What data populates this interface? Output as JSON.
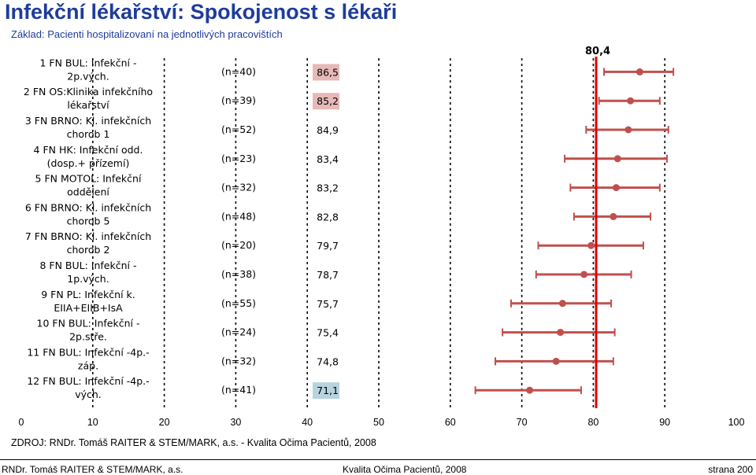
{
  "header": {
    "title": "Infekční lékařství: Spokojenost s lékaři",
    "subtitle": "Základ: Pacienti hospitalizovaní na jednotlivých pracovištích"
  },
  "source": "ZDROJ: RNDr. Tomáš RAITER & STEM/MARK, a.s. - Kvalita Očima Pacientů, 2008",
  "footer": {
    "left": "RNDr. Tomáš RAITER & STEM/MARK, a.s.",
    "center": "Kvalita Očima Pacientů, 2008",
    "right": "strana 200"
  },
  "chart_data": {
    "type": "scatter",
    "subtype": "error-bar",
    "categories": [
      [
        "1 FN BUL: Infekční -",
        "2p.vých."
      ],
      [
        "2 FN OS:Klinika infekčního",
        "lékařství"
      ],
      [
        "3 FN BRNO: Kl. infekčních",
        "chorob 1"
      ],
      [
        "4 FN HK: Infekční odd.",
        "(dosp.+ přízemí)"
      ],
      [
        "5 FN MOTOL: Infekční",
        "oddělení"
      ],
      [
        "6 FN BRNO: Kl. infekčních",
        "chorob 5"
      ],
      [
        "7 FN BRNO: Kl. infekčních",
        "chorob 2"
      ],
      [
        "8 FN BUL: Infekční -",
        "1p.vých."
      ],
      [
        "9 FN PL: Infekční k.",
        "EIIA+EIIB+IsA"
      ],
      [
        "10 FN BUL: Infekční -",
        "2p.stře."
      ],
      [
        "11 FN BUL: Infekční -4p.-",
        "záp."
      ],
      [
        "12 FN BUL: Infekční -4p.-",
        "vých."
      ]
    ],
    "n_labels": [
      "(n=40)",
      "(n=39)",
      "(n=52)",
      "(n=23)",
      "(n=32)",
      "(n=48)",
      "(n=20)",
      "(n=38)",
      "(n=55)",
      "(n=24)",
      "(n=32)",
      "(n=41)"
    ],
    "value_labels": [
      "86,5",
      "85,2",
      "84,9",
      "83,4",
      "83,2",
      "82,8",
      "79,7",
      "78,7",
      "75,7",
      "75,4",
      "74,8",
      "71,1"
    ],
    "values": [
      86.5,
      85.2,
      84.9,
      83.4,
      83.2,
      82.8,
      79.7,
      78.7,
      75.7,
      75.4,
      74.8,
      71.1
    ],
    "low": [
      81.5,
      80.8,
      79.0,
      76.0,
      76.8,
      77.3,
      72.3,
      72.0,
      68.5,
      67.3,
      66.3,
      63.5
    ],
    "high": [
      91.2,
      89.3,
      90.5,
      90.3,
      89.3,
      88.0,
      87.0,
      85.3,
      82.5,
      83.0,
      82.8,
      78.3
    ],
    "highlight": {
      "0": "high",
      "1": "high",
      "11": "low"
    },
    "highlight_colors": {
      "high": "#e6b9b8",
      "low": "#b7d3dd"
    },
    "reference": {
      "value": 80.4,
      "label": "80,4",
      "color": "#e00000"
    },
    "xlim": [
      0,
      100
    ],
    "xticks": [
      "0",
      "10",
      "20",
      "30",
      "40",
      "50",
      "60",
      "70",
      "80",
      "90",
      "100"
    ],
    "grid": "dashed-vertical",
    "colors": {
      "series": "#c0504d"
    }
  }
}
